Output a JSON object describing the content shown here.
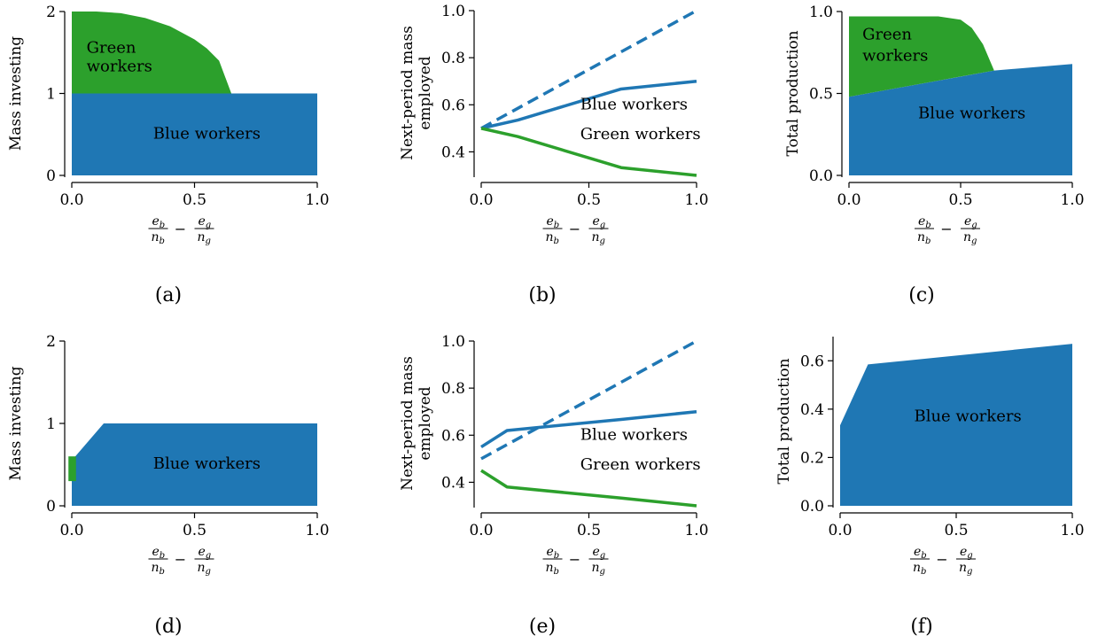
{
  "chart_data": [
    {
      "panel": "(a)",
      "type": "area",
      "xlabel": {
        "b_num": "e",
        "b_num_sub": "b",
        "b_den": "n",
        "b_den_sub": "b",
        "minus": "−",
        "g_num": "e",
        "g_num_sub": "g",
        "g_den": "n",
        "g_den_sub": "g"
      },
      "ylabel": "Mass investing",
      "xlim": [
        0,
        1
      ],
      "ylim": [
        0,
        2
      ],
      "xticks": [
        "0.0",
        "0.5",
        "1.0"
      ],
      "yticks": [
        "0",
        "1",
        "2"
      ],
      "x": [
        0,
        0.1,
        0.2,
        0.3,
        0.4,
        0.5,
        0.55,
        0.6,
        0.65,
        1.0
      ],
      "series": [
        {
          "name": "Blue workers",
          "color": "#1f77b4",
          "values": [
            1,
            1,
            1,
            1,
            1,
            1,
            1,
            1,
            1,
            1
          ]
        },
        {
          "name": "Green workers",
          "color": "#2ca02c",
          "values": [
            1,
            1,
            0.98,
            0.92,
            0.82,
            0.66,
            0.55,
            0.4,
            0,
            0
          ]
        }
      ],
      "annotations": [
        {
          "text": "Green",
          "x": 0.06,
          "y": 1.5
        },
        {
          "text": "workers",
          "x": 0.06,
          "y": 1.27
        },
        {
          "text": "Blue workers",
          "x": 0.55,
          "y": 0.45
        }
      ]
    },
    {
      "panel": "(b)",
      "type": "line",
      "xlabel": {
        "b_num": "e",
        "b_num_sub": "b",
        "b_den": "n",
        "b_den_sub": "b",
        "minus": "−",
        "g_num": "e",
        "g_num_sub": "g",
        "g_den": "n",
        "g_den_sub": "g"
      },
      "ylabel": [
        "Next-period mass",
        "employed"
      ],
      "xlim": [
        0,
        1
      ],
      "ylim": [
        0.3,
        1.0
      ],
      "xticks": [
        "0.0",
        "0.5",
        "1.0"
      ],
      "yticks": [
        "0.4",
        "0.6",
        "0.8",
        "1.0"
      ],
      "series": [
        {
          "name": "Blue workers",
          "color": "#1f77b4",
          "dash": false,
          "x": [
            0,
            0.17,
            0.65,
            1
          ],
          "values": [
            0.5,
            0.535,
            0.667,
            0.7
          ]
        },
        {
          "name": "Blue workers (dashed)",
          "color": "#1f77b4",
          "dash": true,
          "x": [
            0,
            1
          ],
          "values": [
            0.5,
            1.0
          ]
        },
        {
          "name": "Green workers",
          "color": "#2ca02c",
          "dash": false,
          "x": [
            0,
            0.17,
            0.65,
            1
          ],
          "values": [
            0.5,
            0.465,
            0.333,
            0.3
          ]
        }
      ],
      "annotations": [
        {
          "text": "Blue workers",
          "x": 0.46,
          "y": 0.58
        },
        {
          "text": "Green workers",
          "x": 0.46,
          "y": 0.455
        }
      ]
    },
    {
      "panel": "(c)",
      "type": "area",
      "xlabel": {
        "b_num": "e",
        "b_num_sub": "b",
        "b_den": "n",
        "b_den_sub": "b",
        "minus": "−",
        "g_num": "e",
        "g_num_sub": "g",
        "g_den": "n",
        "g_den_sub": "g"
      },
      "ylabel": "Total production",
      "xlim": [
        0,
        1
      ],
      "ylim": [
        0,
        1.0
      ],
      "xticks": [
        "0.0",
        "0.5",
        "1.0"
      ],
      "yticks": [
        "0.0",
        "0.5",
        "1.0"
      ],
      "x": [
        0,
        0.65,
        1.0
      ],
      "series": [
        {
          "name": "Blue workers",
          "color": "#1f77b4",
          "values": [
            0.48,
            0.64,
            0.68
          ]
        },
        {
          "name": "Green workers",
          "color": "#2ca02c",
          "values": [
            0.49,
            0.32,
            0
          ]
        }
      ],
      "green_top": {
        "x": [
          0,
          0.4,
          0.5,
          0.55,
          0.6,
          0.65
        ],
        "values": [
          0.97,
          0.97,
          0.95,
          0.9,
          0.8,
          0.64
        ]
      },
      "annotations": [
        {
          "text": "Green",
          "x": 0.06,
          "y": 0.83
        },
        {
          "text": "workers",
          "x": 0.06,
          "y": 0.7
        },
        {
          "text": "Blue workers",
          "x": 0.55,
          "y": 0.35
        }
      ]
    },
    {
      "panel": "(d)",
      "type": "area",
      "xlabel": {
        "b_num": "e",
        "b_num_sub": "b",
        "b_den": "n",
        "b_den_sub": "b",
        "minus": "−",
        "g_num": "e",
        "g_num_sub": "g",
        "g_den": "n",
        "g_den_sub": "g"
      },
      "ylabel": "Mass investing",
      "xlim": [
        0,
        1
      ],
      "ylim": [
        0,
        2
      ],
      "xticks": [
        "0.0",
        "0.5",
        "1.0"
      ],
      "yticks": [
        "0",
        "1",
        "2"
      ],
      "x": [
        0,
        0.13,
        1.0
      ],
      "series": [
        {
          "name": "Blue workers",
          "color": "#1f77b4",
          "values": [
            0.55,
            1.0,
            1.0
          ]
        },
        {
          "name": "Green workers",
          "color": "#2ca02c",
          "x_range": [
            -0.01,
            0.01
          ],
          "y_range": [
            0.3,
            0.6
          ]
        }
      ],
      "annotations": [
        {
          "text": "Blue workers",
          "x": 0.55,
          "y": 0.45
        }
      ]
    },
    {
      "panel": "(e)",
      "type": "line",
      "xlabel": {
        "b_num": "e",
        "b_num_sub": "b",
        "b_den": "n",
        "b_den_sub": "b",
        "minus": "−",
        "g_num": "e",
        "g_num_sub": "g",
        "g_den": "n",
        "g_den_sub": "g"
      },
      "ylabel": [
        "Next-period mass",
        "employed"
      ],
      "xlim": [
        0,
        1
      ],
      "ylim": [
        0.3,
        1.0
      ],
      "xticks": [
        "0.0",
        "0.5",
        "1.0"
      ],
      "yticks": [
        "0.4",
        "0.6",
        "0.8",
        "1.0"
      ],
      "series": [
        {
          "name": "Blue workers",
          "color": "#1f77b4",
          "dash": false,
          "x": [
            0,
            0.12,
            0.65,
            1
          ],
          "values": [
            0.55,
            0.62,
            0.667,
            0.7
          ]
        },
        {
          "name": "Blue workers (dashed)",
          "color": "#1f77b4",
          "dash": true,
          "x": [
            0,
            1
          ],
          "values": [
            0.5,
            1.0
          ]
        },
        {
          "name": "Green workers",
          "color": "#2ca02c",
          "dash": false,
          "x": [
            0,
            0.12,
            0.65,
            1
          ],
          "values": [
            0.45,
            0.38,
            0.333,
            0.3
          ]
        }
      ],
      "annotations": [
        {
          "text": "Blue workers",
          "x": 0.46,
          "y": 0.58
        },
        {
          "text": "Green workers",
          "x": 0.46,
          "y": 0.455
        }
      ]
    },
    {
      "panel": "(f)",
      "type": "area",
      "xlabel": {
        "b_num": "e",
        "b_num_sub": "b",
        "b_den": "n",
        "b_den_sub": "b",
        "minus": "−",
        "g_num": "e",
        "g_num_sub": "g",
        "g_den": "n",
        "g_den_sub": "g"
      },
      "ylabel": "Total production",
      "xlim": [
        0,
        1
      ],
      "ylim": [
        0,
        0.7
      ],
      "xticks": [
        "0.0",
        "0.5",
        "1.0"
      ],
      "yticks": [
        "0.0",
        "0.2",
        "0.4",
        "0.6"
      ],
      "x": [
        0,
        0.12,
        1.0
      ],
      "series": [
        {
          "name": "Blue workers",
          "color": "#1f77b4",
          "values": [
            0.333,
            0.585,
            0.67
          ]
        }
      ],
      "annotations": [
        {
          "text": "Blue workers",
          "x": 0.55,
          "y": 0.35
        }
      ]
    }
  ]
}
